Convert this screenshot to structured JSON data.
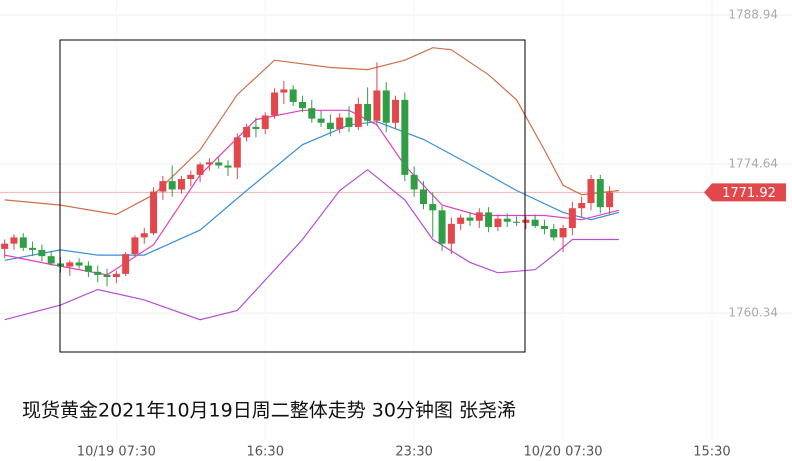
{
  "chart_data": {
    "type": "candlestick",
    "caption": "现货黄金2021年10月19日周二整体走势  30分钟图  张尧浠",
    "up_color": "#e2474b",
    "down_color": "#2f9e45",
    "grid": true,
    "ylim": [
      1748.16,
      1790.38
    ],
    "yticks": [
      1788.94,
      1774.64,
      1760.34
    ],
    "xlim": [
      -0.5,
      84.6
    ],
    "xticks": [
      {
        "value": 12,
        "label": "10/19 07:30"
      },
      {
        "value": 28,
        "label": "16:30"
      },
      {
        "value": 44,
        "label": "23:30"
      },
      {
        "value": 60,
        "label": "10/20 07:30"
      },
      {
        "value": 76,
        "label": "15:30"
      }
    ],
    "last_price": 1771.92,
    "ohlc": [
      [
        1766.5,
        1767.4,
        1765.6,
        1767.0
      ],
      [
        1767.0,
        1767.9,
        1766.4,
        1767.6
      ],
      [
        1767.6,
        1768.0,
        1766.3,
        1766.6
      ],
      [
        1766.6,
        1767.2,
        1765.8,
        1766.4
      ],
      [
        1766.4,
        1766.9,
        1765.3,
        1765.8
      ],
      [
        1765.8,
        1766.3,
        1764.9,
        1765.1
      ],
      [
        1765.1,
        1765.7,
        1764.2,
        1764.8
      ],
      [
        1764.8,
        1765.4,
        1763.9,
        1765.2
      ],
      [
        1765.2,
        1765.6,
        1764.6,
        1764.9
      ],
      [
        1764.9,
        1765.3,
        1763.8,
        1764.3
      ],
      [
        1764.3,
        1764.9,
        1763.3,
        1764.0
      ],
      [
        1764.0,
        1764.6,
        1762.9,
        1763.8
      ],
      [
        1763.8,
        1764.4,
        1763.2,
        1764.1
      ],
      [
        1764.1,
        1766.2,
        1763.9,
        1766.0
      ],
      [
        1766.0,
        1767.8,
        1765.8,
        1767.6
      ],
      [
        1767.6,
        1768.5,
        1767.0,
        1768.0
      ],
      [
        1768.0,
        1772.4,
        1767.8,
        1772.0
      ],
      [
        1772.0,
        1773.5,
        1771.2,
        1773.0
      ],
      [
        1773.0,
        1774.5,
        1771.5,
        1772.2
      ],
      [
        1772.2,
        1773.5,
        1771.8,
        1773.2
      ],
      [
        1773.2,
        1774.0,
        1772.5,
        1773.6
      ],
      [
        1773.6,
        1774.8,
        1772.9,
        1774.6
      ],
      [
        1774.6,
        1775.2,
        1774.0,
        1774.8
      ],
      [
        1774.8,
        1775.3,
        1774.2,
        1774.5
      ],
      [
        1774.5,
        1775.0,
        1773.5,
        1774.3
      ],
      [
        1774.3,
        1777.6,
        1773.2,
        1777.2
      ],
      [
        1777.2,
        1778.5,
        1776.8,
        1778.2
      ],
      [
        1778.2,
        1779.1,
        1777.2,
        1778.0
      ],
      [
        1778.0,
        1779.6,
        1777.5,
        1779.3
      ],
      [
        1779.3,
        1781.9,
        1779.0,
        1781.5
      ],
      [
        1781.5,
        1782.6,
        1780.4,
        1781.8
      ],
      [
        1781.8,
        1782.2,
        1780.2,
        1780.6
      ],
      [
        1780.6,
        1781.2,
        1779.6,
        1780.0
      ],
      [
        1780.0,
        1780.8,
        1778.6,
        1779.0
      ],
      [
        1779.0,
        1779.8,
        1778.2,
        1778.6
      ],
      [
        1778.6,
        1779.4,
        1777.3,
        1778.0
      ],
      [
        1778.0,
        1779.5,
        1777.6,
        1779.1
      ],
      [
        1779.1,
        1780.2,
        1777.7,
        1778.2
      ],
      [
        1778.2,
        1781.0,
        1777.9,
        1780.4
      ],
      [
        1780.4,
        1782.0,
        1778.3,
        1778.8
      ],
      [
        1778.8,
        1784.4,
        1778.3,
        1781.7
      ],
      [
        1781.7,
        1782.5,
        1777.7,
        1778.6
      ],
      [
        1778.6,
        1781.2,
        1778.0,
        1780.8
      ],
      [
        1780.8,
        1781.5,
        1773.0,
        1773.6
      ],
      [
        1773.6,
        1774.4,
        1771.5,
        1772.2
      ],
      [
        1772.2,
        1773.0,
        1770.3,
        1770.8
      ],
      [
        1770.8,
        1771.9,
        1767.6,
        1770.2
      ],
      [
        1770.2,
        1770.6,
        1766.3,
        1767.0
      ],
      [
        1767.0,
        1769.5,
        1766.0,
        1768.9
      ],
      [
        1768.9,
        1769.8,
        1768.3,
        1769.5
      ],
      [
        1769.5,
        1770.0,
        1768.7,
        1769.2
      ],
      [
        1769.2,
        1770.4,
        1768.5,
        1770.0
      ],
      [
        1770.0,
        1770.5,
        1768.1,
        1768.6
      ],
      [
        1768.6,
        1769.8,
        1768.2,
        1769.4
      ],
      [
        1769.4,
        1769.9,
        1768.6,
        1769.1
      ],
      [
        1769.1,
        1769.6,
        1768.7,
        1769.0
      ],
      [
        1769.0,
        1769.6,
        1768.4,
        1769.3
      ],
      [
        1769.3,
        1769.8,
        1768.5,
        1768.7
      ],
      [
        1768.7,
        1769.3,
        1767.9,
        1768.4
      ],
      [
        1768.4,
        1768.9,
        1767.3,
        1767.6
      ],
      [
        1767.6,
        1768.8,
        1766.2,
        1768.5
      ],
      [
        1768.5,
        1771.0,
        1767.8,
        1770.4
      ],
      [
        1770.4,
        1771.5,
        1769.5,
        1770.9
      ],
      [
        1770.9,
        1773.6,
        1770.2,
        1773.2
      ],
      [
        1773.2,
        1773.6,
        1769.9,
        1770.5
      ],
      [
        1770.5,
        1772.5,
        1769.8,
        1771.92
      ]
    ],
    "lines": [
      {
        "color": "#d0704a",
        "x": [
          0,
          6,
          12,
          16,
          21,
          25,
          29,
          35,
          39,
          43,
          46,
          48,
          52,
          55,
          58,
          60,
          62,
          66
        ],
        "values": [
          1771.2,
          1770.7,
          1769.8,
          1771.7,
          1776.0,
          1781.3,
          1784.6,
          1783.9,
          1783.7,
          1784.6,
          1785.8,
          1785.6,
          1783.2,
          1780.8,
          1776.0,
          1772.6,
          1771.7,
          1772.1
        ]
      },
      {
        "color": "#b44fd6",
        "x": [
          0,
          6,
          10,
          15,
          21,
          25,
          32,
          36,
          39,
          43,
          46,
          50,
          53,
          57,
          59,
          61,
          64,
          66
        ],
        "values": [
          1759.7,
          1761.1,
          1762.6,
          1761.6,
          1759.7,
          1760.6,
          1767.4,
          1772.1,
          1774.1,
          1771.2,
          1767.4,
          1765.2,
          1764.2,
          1764.5,
          1765.9,
          1767.4,
          1767.4,
          1767.4
        ]
      },
      {
        "color": "#3a8fd8",
        "x": [
          0,
          6,
          10,
          15,
          21,
          26,
          32,
          37,
          40,
          45,
          50,
          55,
          60,
          63,
          66
        ],
        "values": [
          1765.4,
          1766.4,
          1765.9,
          1765.9,
          1768.3,
          1772.1,
          1776.5,
          1778.4,
          1778.7,
          1777.0,
          1774.6,
          1772.1,
          1770.0,
          1769.3,
          1770.0
        ]
      },
      {
        "color": "#e040c0",
        "x": [
          0,
          5,
          11,
          16,
          21,
          27,
          32,
          37,
          40,
          43,
          47,
          51,
          58,
          62,
          66
        ],
        "values": [
          1765.9,
          1765.0,
          1764.0,
          1766.9,
          1773.6,
          1778.9,
          1779.8,
          1779.8,
          1778.4,
          1774.5,
          1770.7,
          1769.7,
          1769.7,
          1769.3,
          1770.2
        ]
      }
    ]
  }
}
